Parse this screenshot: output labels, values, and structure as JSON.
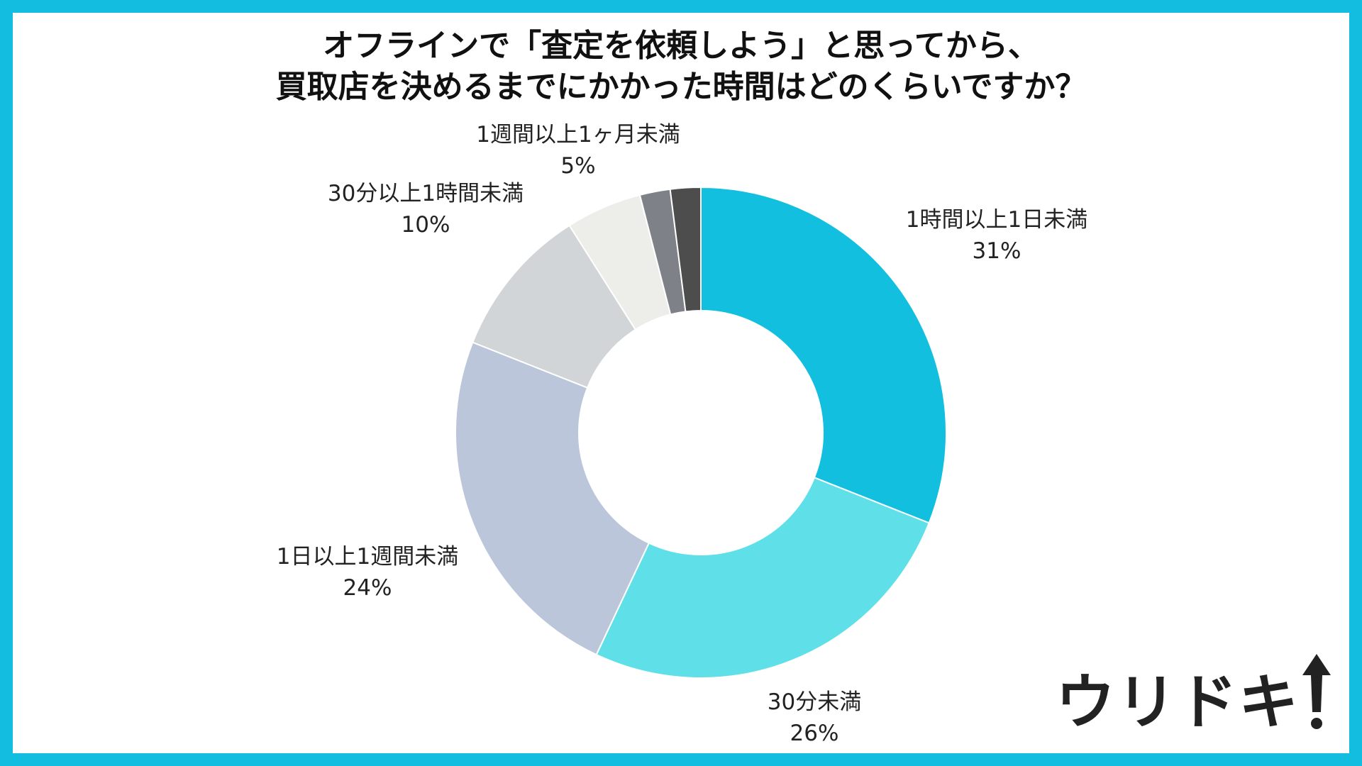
{
  "title": {
    "line1": "オフラインで「査定を依頼しよう」と思ってから、",
    "line2": "買取店を決めるまでにかかった時間はどのくらいですか？"
  },
  "chart_data": {
    "type": "pie",
    "variant": "donut",
    "title": "オフラインで「査定を依頼しよう」と思ってから、買取店を決めるまでにかかった時間はどのくらいですか？",
    "slices": [
      {
        "label": "1時間以上1日未満",
        "value": 31,
        "display": "31%",
        "color": "#12bfdf"
      },
      {
        "label": "30分未満",
        "value": 26,
        "display": "26%",
        "color": "#5fe0e8"
      },
      {
        "label": "1日以上1週間未満",
        "value": 24,
        "display": "24%",
        "color": "#bbc6db"
      },
      {
        "label": "30分以上1時間未満",
        "value": 10,
        "display": "10%",
        "color": "#d1d5d7"
      },
      {
        "label": "1週間以上1ヶ月未満",
        "value": 5,
        "display": "5%",
        "color": "#ededea"
      },
      {
        "label": "",
        "value": 2,
        "display": "",
        "color": "#7e8288"
      },
      {
        "label": "",
        "value": 2,
        "display": "",
        "color": "#4d4d4d"
      }
    ],
    "legend": "none",
    "start_angle": "12 o'clock",
    "direction": "clockwise"
  },
  "logo": {
    "text": "ウリドキ"
  },
  "colors": {
    "frame": "#12bde0",
    "text": "#222222",
    "background": "#ffffff"
  }
}
